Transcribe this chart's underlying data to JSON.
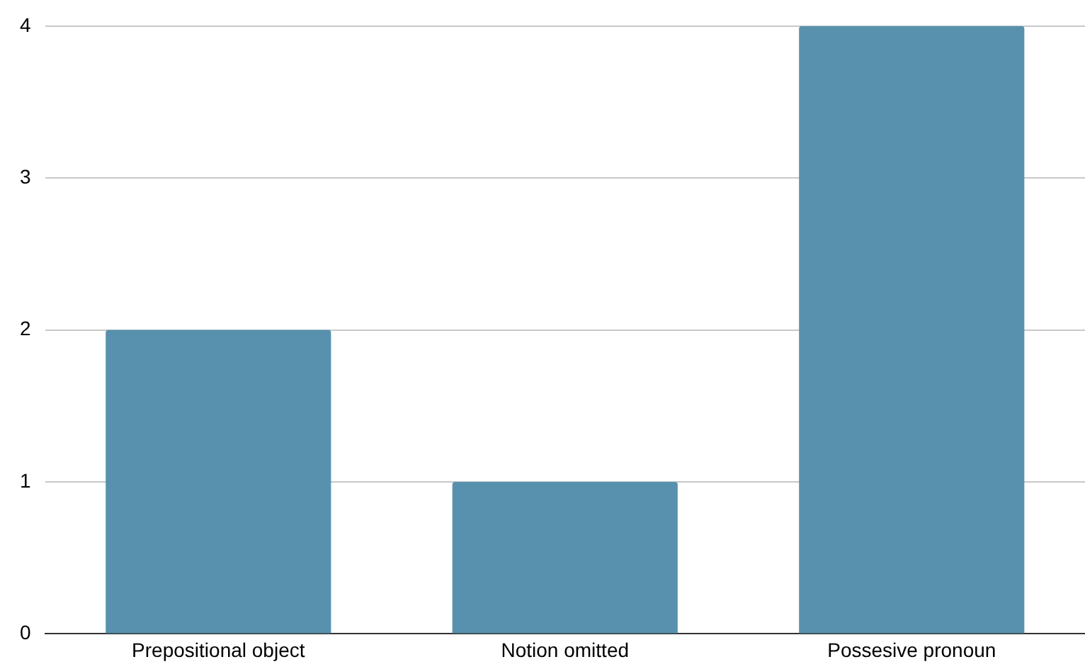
{
  "chart_data": {
    "type": "bar",
    "categories": [
      "Prepositional object",
      "Notion omitted",
      "Possesive pronoun"
    ],
    "values": [
      2,
      1,
      4
    ],
    "color": "#5891ad",
    "ylim": [
      0,
      4
    ],
    "yticks": [
      0,
      1,
      2,
      3,
      4
    ],
    "grid": "y"
  }
}
